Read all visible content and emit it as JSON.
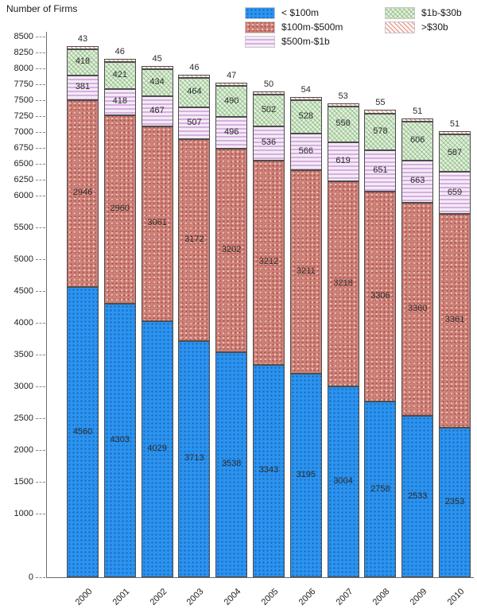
{
  "title": "Number of Firms",
  "legend": {
    "items": [
      {
        "key": "lt100m",
        "label": "< $100m"
      },
      {
        "key": "100m-500m",
        "label": "$100m-$500m"
      },
      {
        "key": "500m-1b",
        "label": "$500m-$1b"
      },
      {
        "key": "1b-30b",
        "label": "$1b-$30b"
      },
      {
        "key": "gt30b",
        "label": ">$30b"
      }
    ]
  },
  "colors": {
    "lt100m": "#2b93f0",
    "100m-500m": "#cf8077",
    "500m-1b": "#e3c2ec",
    "1b-30b": "#cfe7c8",
    "gt30b": "#f3c0b5",
    "segment_border": "#4d4d4d",
    "axis": "#6b6b6b"
  },
  "chart_data": {
    "type": "bar",
    "stacked": true,
    "title": "Number of Firms",
    "ylabel": "Number of Firms",
    "xlabel": "",
    "ylim": [
      0,
      8500
    ],
    "grid": false,
    "legend_position": "top",
    "categories": [
      "2000",
      "2001",
      "2002",
      "2003",
      "2004",
      "2005",
      "2006",
      "2007",
      "2008",
      "2009",
      "2010"
    ],
    "yticks": [
      8500,
      8250,
      8000,
      7750,
      7500,
      7250,
      7000,
      6750,
      6500,
      6250,
      6000,
      5500,
      5000,
      4500,
      4000,
      3500,
      3000,
      2500,
      2000,
      1500,
      1000,
      0
    ],
    "series": [
      {
        "name": "< $100m",
        "values": [
          4560,
          4303,
          4029,
          3713,
          3538,
          3343,
          3195,
          3004,
          2758,
          2533,
          2353
        ]
      },
      {
        "name": "$100m-$500m",
        "values": [
          2946,
          2960,
          3061,
          3172,
          3202,
          3212,
          3211,
          3218,
          3306,
          3360,
          3361
        ]
      },
      {
        "name": "$500m-$1b",
        "values": [
          381,
          418,
          467,
          507,
          496,
          536,
          566,
          619,
          651,
          663,
          659
        ]
      },
      {
        "name": "$1b-$30b",
        "values": [
          418,
          421,
          434,
          464,
          490,
          502,
          528,
          558,
          578,
          606,
          587
        ]
      },
      {
        "name": ">$30b",
        "values": [
          43,
          46,
          45,
          46,
          47,
          50,
          54,
          53,
          55,
          51,
          51
        ]
      }
    ]
  }
}
